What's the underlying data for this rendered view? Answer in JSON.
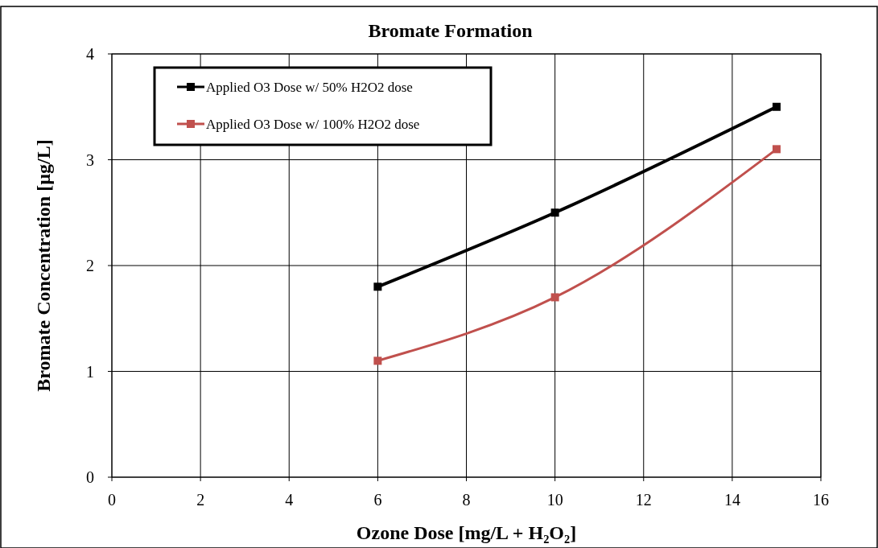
{
  "chart_data": {
    "type": "line",
    "title": "Bromate Formation",
    "xlabel": "Ozone Dose [mg/L + H₂O₂]",
    "ylabel": "Bromate Concentration [µg/L]",
    "x": [
      6,
      10,
      15
    ],
    "series": [
      {
        "name": "Applied O3 Dose w/ 50% H2O2 dose",
        "color": "#000000",
        "values": [
          1.8,
          2.5,
          3.5
        ]
      },
      {
        "name": "Applied O3 Dose w/ 100% H2O2 dose",
        "color": "#c0504d",
        "values": [
          1.1,
          1.7,
          3.1
        ]
      }
    ],
    "xlim": [
      0,
      16
    ],
    "xticks": [
      0,
      2,
      4,
      6,
      8,
      10,
      12,
      14,
      16
    ],
    "ylim": [
      0,
      4
    ],
    "yticks": [
      0,
      1,
      2,
      3,
      4
    ],
    "grid": true,
    "legend": "top left",
    "marker": "square",
    "line_style": "solid"
  }
}
